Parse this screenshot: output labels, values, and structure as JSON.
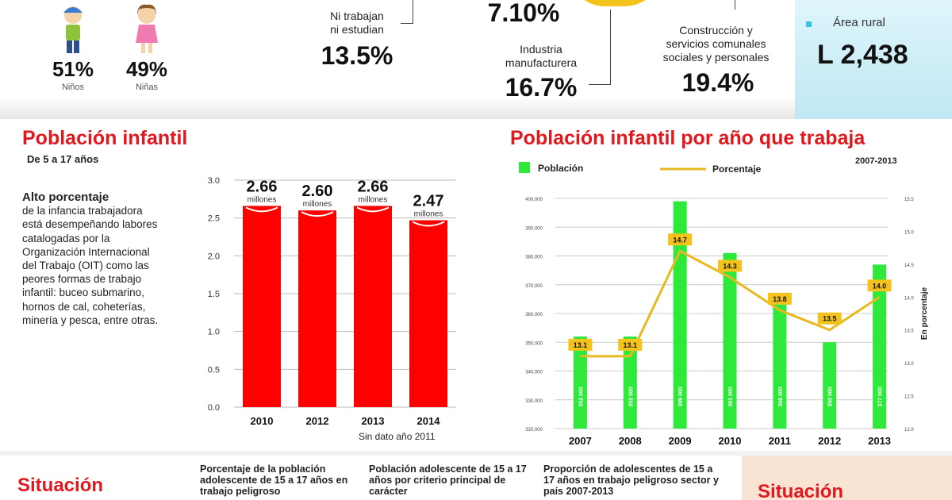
{
  "top": {
    "boys": {
      "pct": "51%",
      "label": "Niños"
    },
    "girls": {
      "pct": "49%",
      "label": "Niñas"
    },
    "neet": {
      "label_1": "Ni trabajan",
      "label_2": "ni estudian",
      "value": "13.5%"
    },
    "top_value": "7.10%",
    "manufacturing": {
      "label_1": "Industria",
      "label_2": "manufacturera",
      "value": "16.7%"
    },
    "services": {
      "label_1": "Construcción y",
      "label_2": "servicios comunales",
      "label_3": "sociales y personales",
      "value": "19.4%"
    },
    "rural": {
      "label": "Área rural",
      "value": "L 2,438"
    }
  },
  "left_section": {
    "title": "Población infantil",
    "subtitle": "De 5 a 17 años",
    "text_bold": "Alto porcentaje",
    "text": "de la infancia trabajadora está desempeñando labores catalogadas por la Organización Internacional del Trabajo (OIT) como las peores formas de trabajo infantil: buceo submarino, hornos de cal, coheterías, minería y pesca, entre otras.",
    "note": "Sin dato año 2011"
  },
  "right_section": {
    "title": "Población infantil por año que trabaja",
    "period": "2007-2013"
  },
  "bottom": {
    "left_title": "Situación",
    "right_title": "Situación",
    "col1": "Porcentaje de la población adolescente de 15 a 17 años en trabajo peligroso",
    "col2": "Población adolescente de 15 a 17 años por criterio principal de carácter",
    "col3": "Proporción de adolescentes de 15 a 17 años en trabajo peligroso sector y país 2007-2013"
  },
  "colors": {
    "accent_red": "#e0191f",
    "bar_green": "#2ee83a",
    "line_gold": "#e8b820",
    "label_bg": "#f3c21b"
  },
  "chart_data": [
    {
      "type": "bar",
      "categories": [
        "2010",
        "2012",
        "2013",
        "2014"
      ],
      "values": [
        2.66,
        2.6,
        2.66,
        2.47
      ],
      "value_labels": [
        "2.66",
        "2.60",
        "2.66",
        "2.47"
      ],
      "unit_label": "millones",
      "ylim": [
        0,
        3.0
      ],
      "yticks": [
        "0.0",
        "0.5",
        "1.0",
        "1.5",
        "2.0",
        "2.5",
        "3.0"
      ],
      "grid": true,
      "bar_color": "#ff0000"
    },
    {
      "type": "bar",
      "categories": [
        "2007",
        "2008",
        "2009",
        "2010",
        "2011",
        "2012",
        "2013"
      ],
      "series": [
        {
          "name": "Población",
          "type": "bar",
          "axis": "left",
          "values": [
            352000,
            352000,
            399000,
            381000,
            366000,
            350000,
            377000
          ],
          "value_labels": [
            "352 000",
            "352 000",
            "399 000",
            "381 000",
            "366 000",
            "350 000",
            "377 000"
          ]
        },
        {
          "name": "Porcentaje",
          "type": "line",
          "axis": "right",
          "values": [
            13.1,
            13.1,
            14.7,
            14.3,
            13.8,
            13.5,
            14.0
          ],
          "value_labels": [
            "13.1",
            "13.1",
            "14.7",
            "14.3",
            "13.8",
            "13.5",
            "14.0"
          ]
        }
      ],
      "y_left_ticks": [
        "320,000",
        "330,000",
        "340,000",
        "350,000",
        "360,000",
        "370,000",
        "380,000",
        "390,000",
        "400,000"
      ],
      "ylim_left": [
        320000,
        400000
      ],
      "y_right_ticks": [
        "12.0",
        "12.5",
        "13.0",
        "13.5",
        "14.0",
        "14.5",
        "15.0",
        "15.5"
      ],
      "ylim_right": [
        12.0,
        15.5
      ],
      "ylabel_right": "En porcentaje",
      "legend_position": "top",
      "grid": true
    }
  ]
}
